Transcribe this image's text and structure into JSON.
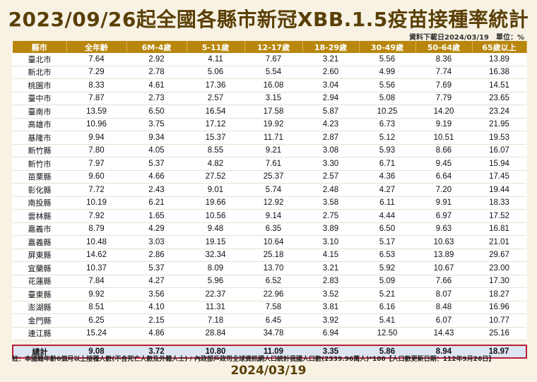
{
  "title": "2023/09/26起全國各縣市新冠XBB.1.5疫苗接種率統計",
  "source_note": "資料下載日2024/03/19　單位：%",
  "headers": [
    "縣市",
    "全年齡",
    "6M-4歲",
    "5-11歲",
    "12-17歲",
    "18-29歲",
    "30-49歲",
    "50-64歲",
    "65歲以上"
  ],
  "rows": [
    [
      "臺北市",
      "7.64",
      "2.92",
      "4.11",
      "7.67",
      "3.21",
      "5.56",
      "8.36",
      "13.89"
    ],
    [
      "新北市",
      "7.29",
      "2.78",
      "5.06",
      "5.54",
      "2.60",
      "4.99",
      "7.74",
      "16.38"
    ],
    [
      "桃園市",
      "8.33",
      "4.61",
      "17.36",
      "16.08",
      "3.04",
      "5.56",
      "7.69",
      "14.51"
    ],
    [
      "臺中市",
      "7.87",
      "2.73",
      "2.57",
      "3.15",
      "2.94",
      "5.08",
      "7.79",
      "23.65"
    ],
    [
      "臺南市",
      "13.59",
      "6.50",
      "16.54",
      "17.58",
      "5.87",
      "10.25",
      "14.20",
      "23.24"
    ],
    [
      "高雄市",
      "10.96",
      "3.75",
      "17.12",
      "19.92",
      "4.23",
      "6.73",
      "9.19",
      "21.95"
    ],
    [
      "基隆市",
      "9.94",
      "9.34",
      "15.37",
      "11.71",
      "2.87",
      "5.12",
      "10.51",
      "19.53"
    ],
    [
      "新竹縣",
      "7.80",
      "4.05",
      "8.55",
      "9.21",
      "3.08",
      "5.93",
      "8.66",
      "16.07"
    ],
    [
      "新竹市",
      "7.97",
      "5.37",
      "4.82",
      "7.61",
      "3.30",
      "6.71",
      "9.45",
      "15.94"
    ],
    [
      "苗栗縣",
      "9.60",
      "4.66",
      "27.52",
      "25.37",
      "2.57",
      "4.36",
      "6.64",
      "17.45"
    ],
    [
      "彰化縣",
      "7.72",
      "2.43",
      "9.01",
      "5.74",
      "2.48",
      "4.27",
      "7.20",
      "19.44"
    ],
    [
      "南投縣",
      "10.19",
      "6.21",
      "19.66",
      "12.92",
      "3.58",
      "6.11",
      "9.91",
      "18.33"
    ],
    [
      "雲林縣",
      "7.92",
      "1.65",
      "10.56",
      "9.14",
      "2.75",
      "4.44",
      "6.97",
      "17.52"
    ],
    [
      "嘉義市",
      "8.79",
      "4.29",
      "9.48",
      "6.35",
      "3.89",
      "6.50",
      "9.63",
      "16.81"
    ],
    [
      "嘉義縣",
      "10.48",
      "3.03",
      "19.15",
      "10.64",
      "3.10",
      "5.17",
      "10.63",
      "21.01"
    ],
    [
      "屏東縣",
      "14.62",
      "2.86",
      "32.34",
      "25.18",
      "4.15",
      "6.53",
      "13.89",
      "29.67"
    ],
    [
      "宜蘭縣",
      "10.37",
      "5.37",
      "8.09",
      "13.70",
      "3.21",
      "5.92",
      "10.67",
      "23.00"
    ],
    [
      "花蓮縣",
      "7.84",
      "4.27",
      "5.96",
      "6.52",
      "2.83",
      "5.09",
      "7.66",
      "17.30"
    ],
    [
      "臺東縣",
      "9.92",
      "3.56",
      "22.37",
      "22.96",
      "3.52",
      "5.21",
      "8.07",
      "18.27"
    ],
    [
      "澎湖縣",
      "8.51",
      "4.10",
      "11.31",
      "7.58",
      "3.81",
      "6.16",
      "8.48",
      "16.96"
    ],
    [
      "金門縣",
      "6.25",
      "2.15",
      "7.18",
      "6.45",
      "3.92",
      "5.41",
      "6.07",
      "10.77"
    ],
    [
      "連江縣",
      "15.24",
      "4.86",
      "28.84",
      "34.78",
      "6.94",
      "12.50",
      "14.43",
      "25.16"
    ]
  ],
  "total": [
    "總計",
    "9.08",
    "3.72",
    "10.80",
    "11.09",
    "3.35",
    "5.86",
    "8.94",
    "18.97"
  ],
  "footnote": "註：本國籍年齡6個月以上接種人數(不含死亡人數及外籍人士) / 內政部戶政司全球資訊網人口統計我國人口數(2339.96萬人)*100【人口數更新日期：112年9月26日】",
  "date": "2024/03/19"
}
